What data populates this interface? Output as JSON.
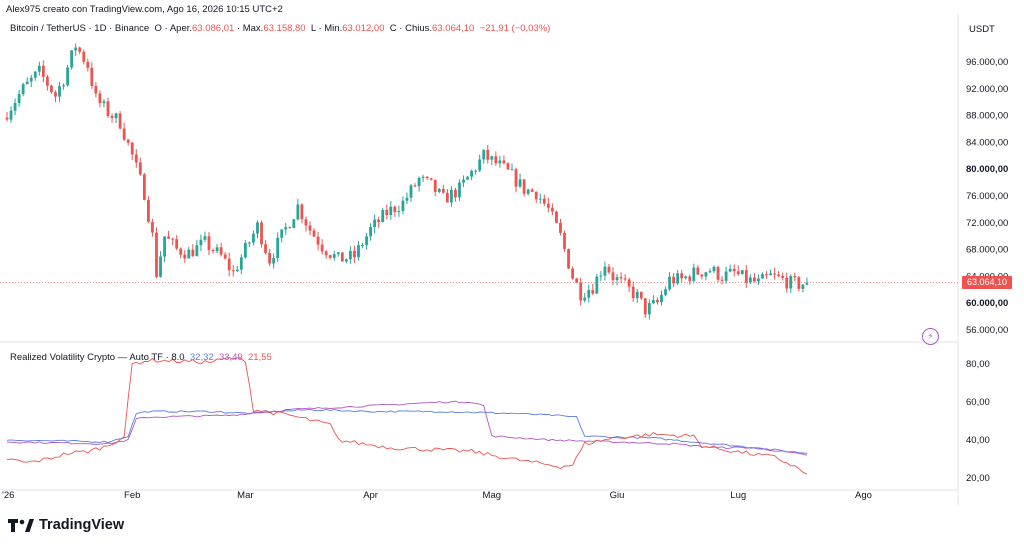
{
  "header": {
    "credit": "Alex975 creato con TradingView.com, Ago 16, 2026 10:15 UTC+2"
  },
  "legend_main": {
    "symbol": "Bitcoin / TetherUS · 1D · Binance",
    "open_label": "O",
    "open_prefix": "Aper.",
    "open_value": "63.086,01",
    "high_prefix": "Max.",
    "high_value": "63.158,80",
    "low_label": "L",
    "low_prefix": "Min.",
    "low_value": "63.012,00",
    "close_label": "C",
    "close_prefix": "Chius.",
    "close_value": "63.064,10",
    "change": "−21,91 (−0,03%)"
  },
  "legend_indicator": {
    "name": "Realized Volatility Crypto — Auto TF · 8.0",
    "v1": "32,32",
    "v2": "33,49",
    "v3": "21,55"
  },
  "price_axis": {
    "currency": "USDT",
    "ticks": [
      {
        "value": 96000,
        "label": "96.000,00",
        "bold": false
      },
      {
        "value": 92000,
        "label": "92.000,00",
        "bold": false
      },
      {
        "value": 88000,
        "label": "88.000,00",
        "bold": false
      },
      {
        "value": 84000,
        "label": "84.000,00",
        "bold": false
      },
      {
        "value": 80000,
        "label": "80.000,00",
        "bold": true
      },
      {
        "value": 76000,
        "label": "76.000,00",
        "bold": false
      },
      {
        "value": 72000,
        "label": "72.000,00",
        "bold": false
      },
      {
        "value": 68000,
        "label": "68.000,00",
        "bold": false
      },
      {
        "value": 64000,
        "label": "64.000,00",
        "bold": false
      },
      {
        "value": 60000,
        "label": "60.000,00",
        "bold": true
      },
      {
        "value": 56000,
        "label": "56.000,00",
        "bold": false
      }
    ],
    "last_price": 63064.1,
    "last_price_label": "63.064,10"
  },
  "vol_axis": {
    "ticks": [
      {
        "value": 80,
        "label": "80,00"
      },
      {
        "value": 60,
        "label": "60,00"
      },
      {
        "value": 40,
        "label": "40,00"
      },
      {
        "value": 20,
        "label": "20,00"
      }
    ]
  },
  "time_axis": {
    "ticks": [
      {
        "day": 0,
        "label": "'26"
      },
      {
        "day": 31,
        "label": "Feb"
      },
      {
        "day": 59,
        "label": "Mar"
      },
      {
        "day": 90,
        "label": "Apr"
      },
      {
        "day": 120,
        "label": "Mag"
      },
      {
        "day": 151,
        "label": "Giu"
      },
      {
        "day": 181,
        "label": "Lug"
      },
      {
        "day": 212,
        "label": "Ago"
      }
    ]
  },
  "brand": {
    "name": "TradingView"
  },
  "colors": {
    "up": "#26a69a",
    "down": "#ef5350",
    "vol_blue": "#5b7be8",
    "vol_purple": "#b057c4",
    "vol_red": "#ef5350"
  },
  "icons": {
    "bolt": "bolt-icon",
    "brand": "tradingview-logo-icon"
  },
  "chart_data": [
    {
      "type": "candlestick",
      "title": "Bitcoin / TetherUS · 1D · Binance",
      "x_unit": "day of 2026",
      "y_unit": "USDT",
      "ylim": [
        54000,
        101000
      ],
      "close_path": [
        [
          0,
          88500
        ],
        [
          4,
          92000
        ],
        [
          8,
          94500
        ],
        [
          12,
          91000
        ],
        [
          14,
          93500
        ],
        [
          17,
          98500
        ],
        [
          20,
          95500
        ],
        [
          22,
          90500
        ],
        [
          25,
          88500
        ],
        [
          28,
          87000
        ],
        [
          31,
          82000
        ],
        [
          34,
          76500
        ],
        [
          36,
          70000
        ],
        [
          37,
          64500
        ],
        [
          39,
          70000
        ],
        [
          42,
          68000
        ],
        [
          45,
          67500
        ],
        [
          49,
          69000
        ],
        [
          53,
          67000
        ],
        [
          56,
          64500
        ],
        [
          59,
          68000
        ],
        [
          62,
          71500
        ],
        [
          65,
          66500
        ],
        [
          68,
          70000
        ],
        [
          72,
          74500
        ],
        [
          75,
          71000
        ],
        [
          78,
          68500
        ],
        [
          82,
          66500
        ],
        [
          86,
          67000
        ],
        [
          90,
          71000
        ],
        [
          94,
          73500
        ],
        [
          98,
          75000
        ],
        [
          102,
          78500
        ],
        [
          105,
          77500
        ],
        [
          108,
          75500
        ],
        [
          112,
          77000
        ],
        [
          115,
          79500
        ],
        [
          118,
          82000
        ],
        [
          122,
          80500
        ],
        [
          125,
          79000
        ],
        [
          128,
          77000
        ],
        [
          131,
          76500
        ],
        [
          134,
          74000
        ],
        [
          137,
          70000
        ],
        [
          140,
          64000
        ],
        [
          142,
          61500
        ],
        [
          145,
          62500
        ],
        [
          148,
          66000
        ],
        [
          150,
          64000
        ],
        [
          153,
          62500
        ],
        [
          156,
          61000
        ],
        [
          158,
          59000
        ],
        [
          161,
          60000
        ],
        [
          164,
          63500
        ],
        [
          167,
          63500
        ],
        [
          170,
          64500
        ],
        [
          174,
          65000
        ],
        [
          177,
          64000
        ],
        [
          180,
          64500
        ],
        [
          183,
          63500
        ],
        [
          186,
          63000
        ],
        [
          189,
          64000
        ],
        [
          192,
          63500
        ],
        [
          194,
          63000
        ],
        [
          196,
          62800
        ],
        [
          198,
          63064
        ]
      ]
    },
    {
      "type": "line",
      "title": "Realized Volatility Crypto — Auto TF · 8.0",
      "x_unit": "day of 2026",
      "ylim": [
        15,
        86
      ],
      "series": [
        {
          "name": "",
          "color": "#5b7be8",
          "last": 32.32,
          "points": [
            [
              0,
              40
            ],
            [
              25,
              39
            ],
            [
              30,
              42
            ],
            [
              32,
              54
            ],
            [
              35,
              55
            ],
            [
              50,
              55
            ],
            [
              60,
              54
            ],
            [
              75,
              56
            ],
            [
              90,
              55
            ],
            [
              108,
              55
            ],
            [
              125,
              54
            ],
            [
              135,
              53
            ],
            [
              141,
              52
            ],
            [
              143,
              42
            ],
            [
              160,
              41
            ],
            [
              180,
              37
            ],
            [
              198,
              33
            ]
          ]
        },
        {
          "name": "",
          "color": "#b057c4",
          "last": 33.49,
          "points": [
            [
              0,
              39
            ],
            [
              25,
              38
            ],
            [
              30,
              40
            ],
            [
              32,
              51
            ],
            [
              35,
              52
            ],
            [
              55,
              53
            ],
            [
              70,
              56
            ],
            [
              90,
              58
            ],
            [
              108,
              60
            ],
            [
              115,
              60
            ],
            [
              118,
              58
            ],
            [
              120,
              42
            ],
            [
              135,
              40
            ],
            [
              150,
              39
            ],
            [
              165,
              38
            ],
            [
              175,
              36
            ],
            [
              185,
              36
            ],
            [
              198,
              32
            ]
          ]
        },
        {
          "name": "",
          "color": "#ef5350",
          "last": 21.55,
          "points": [
            [
              0,
              30
            ],
            [
              5,
              28
            ],
            [
              10,
              30
            ],
            [
              15,
              33
            ],
            [
              20,
              34
            ],
            [
              25,
              37
            ],
            [
              29,
              42
            ],
            [
              31,
              80
            ],
            [
              35,
              82
            ],
            [
              50,
              81
            ],
            [
              55,
              83
            ],
            [
              59,
              82
            ],
            [
              61,
              56
            ],
            [
              70,
              53
            ],
            [
              80,
              48
            ],
            [
              82,
              40
            ],
            [
              88,
              38
            ],
            [
              95,
              36
            ],
            [
              105,
              35
            ],
            [
              115,
              34
            ],
            [
              125,
              30
            ],
            [
              137,
              26
            ],
            [
              140,
              27
            ],
            [
              143,
              38
            ],
            [
              150,
              41
            ],
            [
              160,
              43
            ],
            [
              170,
              42
            ],
            [
              172,
              37
            ],
            [
              180,
              34
            ],
            [
              190,
              31
            ],
            [
              195,
              26
            ],
            [
              198,
              22
            ]
          ]
        }
      ]
    }
  ]
}
